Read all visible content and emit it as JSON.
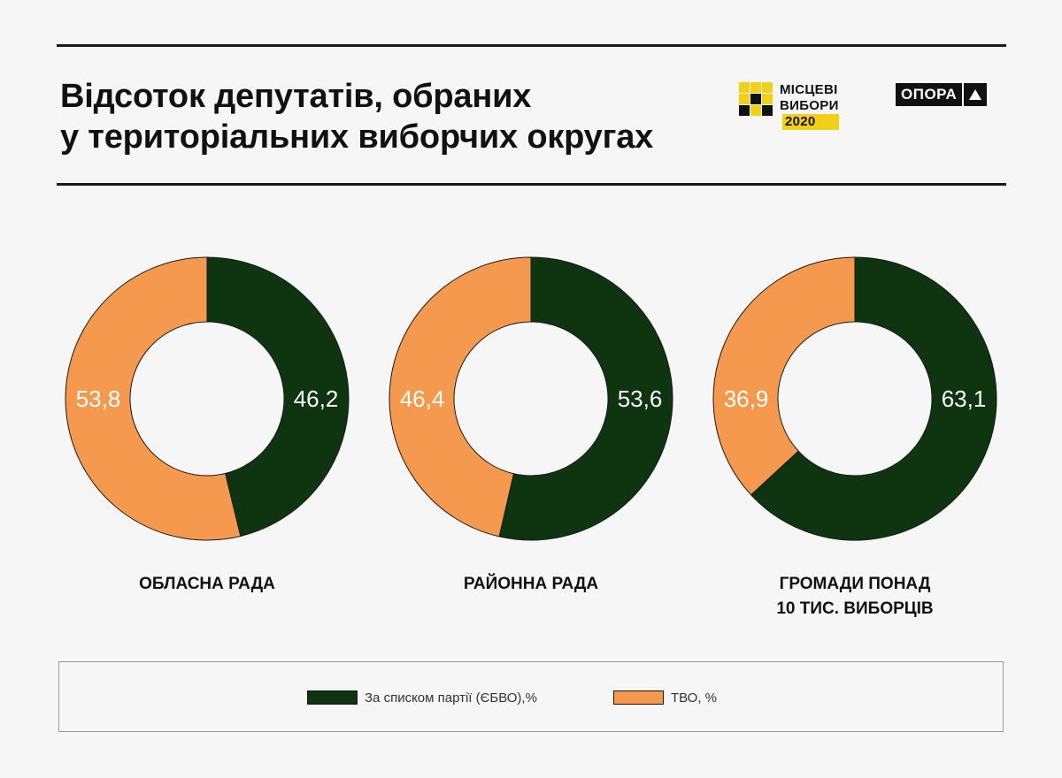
{
  "header": {
    "title_line1": "Відсоток депутатів, обраних",
    "title_line2": "у територіальних виборчих округах"
  },
  "logos": {
    "mv_line1": "МІСЦЕВІ",
    "mv_line2": "ВИБОРИ",
    "mv_year": "2020",
    "opora": "ОПОРА"
  },
  "colors": {
    "party": "#0e3510",
    "district": "#f5994f",
    "accent_yellow": "#f3d018"
  },
  "legend": {
    "items": [
      {
        "label": "За списком партії (ЄБВО),%",
        "color": "#0e3510"
      },
      {
        "label": "ТВО, %",
        "color": "#f5994f"
      }
    ]
  },
  "chart_data": [
    {
      "type": "pie",
      "title": "ОБЛАСНА РАДА",
      "slices": [
        {
          "label": "За списком партії (ЄБВО),%",
          "value": 46.2,
          "display": "46,2"
        },
        {
          "label": "ТВО, %",
          "value": 53.8,
          "display": "53,8"
        }
      ]
    },
    {
      "type": "pie",
      "title": "РАЙОННА РАДА",
      "slices": [
        {
          "label": "За списком партії (ЄБВО),%",
          "value": 53.6,
          "display": "53,6"
        },
        {
          "label": "ТВО, %",
          "value": 46.4,
          "display": "46,4"
        }
      ]
    },
    {
      "type": "pie",
      "title": "ГРОМАДИ ПОНАД 10 ТИС. ВИБОРЦІВ",
      "title_lines": [
        "ГРОМАДИ ПОНАД",
        "10 ТИС. ВИБОРЦІВ"
      ],
      "slices": [
        {
          "label": "За списком партії (ЄБВО),%",
          "value": 63.1,
          "display": "63,1"
        },
        {
          "label": "ТВО, %",
          "value": 36.9,
          "display": "36,9"
        }
      ]
    }
  ]
}
